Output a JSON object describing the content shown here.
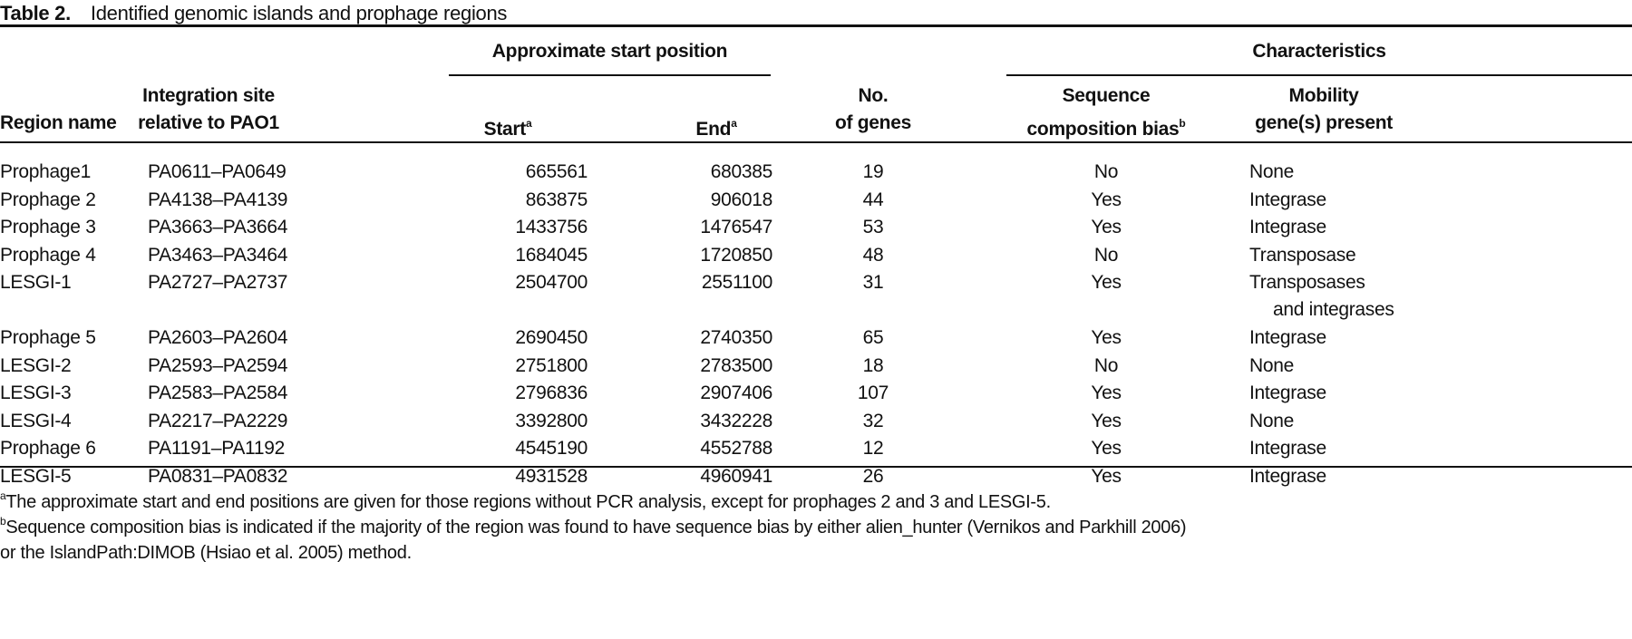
{
  "title": {
    "label": "Table 2.",
    "text": "Identified genomic islands and prophage regions"
  },
  "header": {
    "group_position": "Approximate start position",
    "group_characteristics": "Characteristics",
    "region_name": "Region name",
    "integration_site_line1": "Integration site",
    "integration_site_line2": "relative to PAO1",
    "start": "Start",
    "start_sup": "a",
    "end": "End",
    "end_sup": "a",
    "genes_line1": "No.",
    "genes_line2": "of genes",
    "bias_line1": "Sequence",
    "bias_line2": "composition bias",
    "bias_sup": "b",
    "mobility_line1": "Mobility",
    "mobility_line2": "gene(s) present"
  },
  "rows": [
    {
      "region": "Prophage1",
      "site": "PA0611–PA0649",
      "start": "665561",
      "end": "680385",
      "genes": "19",
      "bias": "No",
      "mobility": "None"
    },
    {
      "region": "Prophage 2",
      "site": "PA4138–PA4139",
      "start": "863875",
      "end": "906018",
      "genes": "44",
      "bias": "Yes",
      "mobility": "Integrase"
    },
    {
      "region": "Prophage 3",
      "site": "PA3663–PA3664",
      "start": "1433756",
      "end": "1476547",
      "genes": "53",
      "bias": "Yes",
      "mobility": "Integrase"
    },
    {
      "region": "Prophage 4",
      "site": "PA3463–PA3464",
      "start": "1684045",
      "end": "1720850",
      "genes": "48",
      "bias": "No",
      "mobility": "Transposase"
    },
    {
      "region": "LESGI-1",
      "site": "PA2727–PA2737",
      "start": "2504700",
      "end": "2551100",
      "genes": "31",
      "bias": "Yes",
      "mobility": "Transposases",
      "mobility2": "and integrases"
    },
    {
      "region": "Prophage 5",
      "site": "PA2603–PA2604",
      "start": "2690450",
      "end": "2740350",
      "genes": "65",
      "bias": "Yes",
      "mobility": "Integrase"
    },
    {
      "region": "LESGI-2",
      "site": "PA2593–PA2594",
      "start": "2751800",
      "end": "2783500",
      "genes": "18",
      "bias": "No",
      "mobility": "None"
    },
    {
      "region": "LESGI-3",
      "site": "PA2583–PA2584",
      "start": "2796836",
      "end": "2907406",
      "genes": "107",
      "bias": "Yes",
      "mobility": "Integrase"
    },
    {
      "region": "LESGI-4",
      "site": "PA2217–PA2229",
      "start": "3392800",
      "end": "3432228",
      "genes": "32",
      "bias": "Yes",
      "mobility": "None"
    },
    {
      "region": "Prophage 6",
      "site": "PA1191–PA1192",
      "start": "4545190",
      "end": "4552788",
      "genes": "12",
      "bias": "Yes",
      "mobility": "Integrase"
    },
    {
      "region": "LESGI-5",
      "site": "PA0831–PA0832",
      "start": "4931528",
      "end": "4960941",
      "genes": "26",
      "bias": "Yes",
      "mobility": "Integrase"
    }
  ],
  "footnotes": [
    {
      "mark": "a",
      "text": "The approximate start and end positions are given for those regions without PCR analysis, except for prophages 2 and 3 and LESGI-5."
    },
    {
      "mark": "b",
      "text": "Sequence composition bias is indicated if the majority of the region was found to have sequence bias by either alien_hunter (Vernikos and Parkhill 2006)",
      "text2": "or the IslandPath:DIMOB (Hsiao et al. 2005) method."
    }
  ]
}
